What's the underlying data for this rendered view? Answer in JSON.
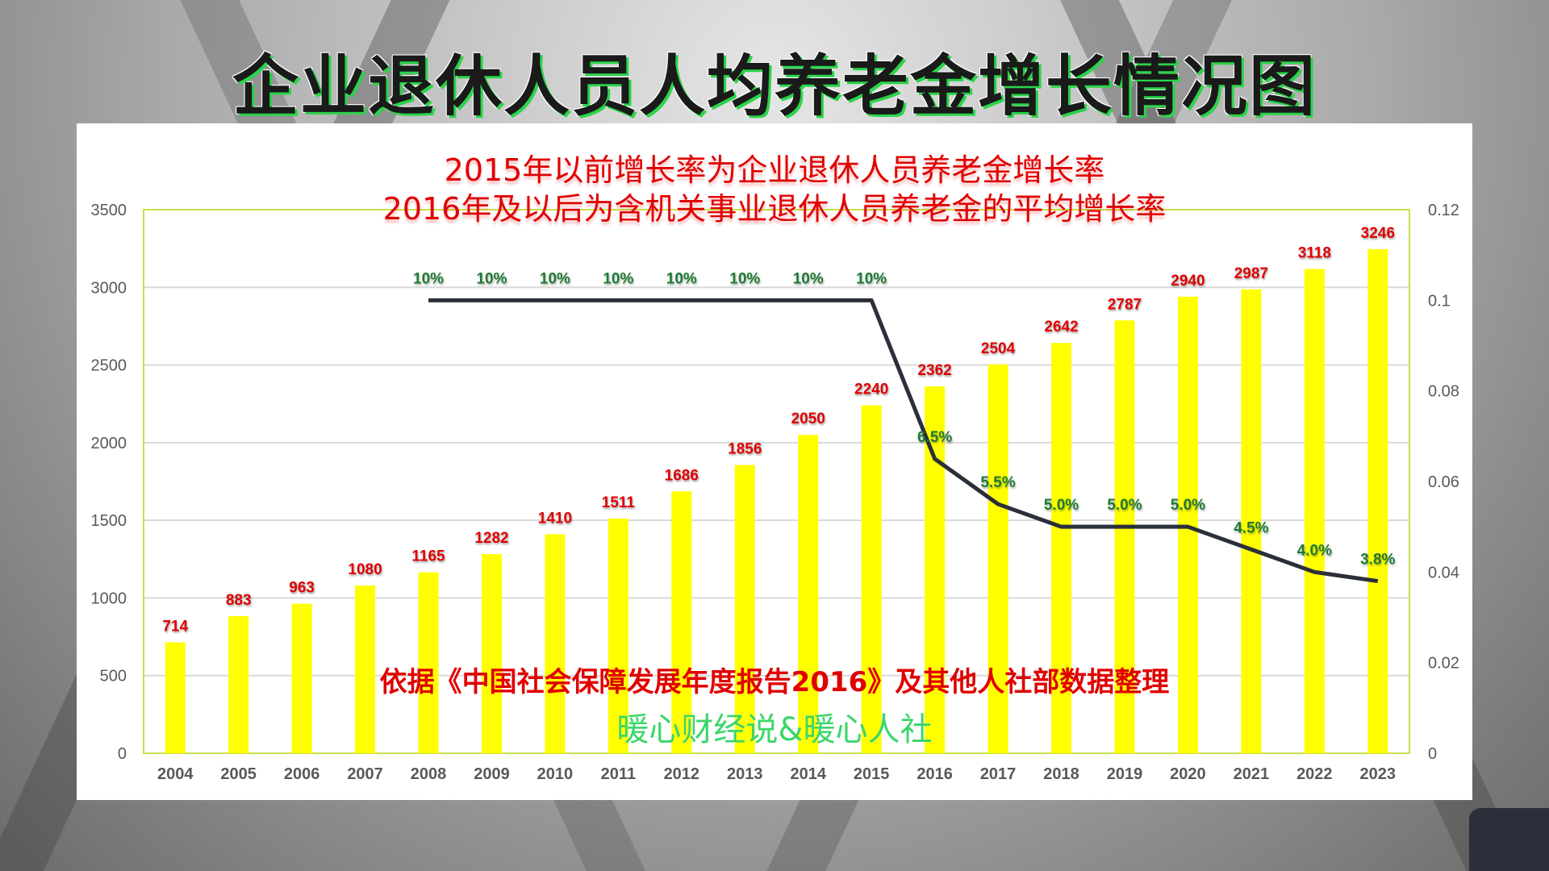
{
  "title": "企业退休人员人均养老金增长情况图",
  "chart_data": {
    "type": "bar+line",
    "subtitle_lines": [
      "2015年以前增长率为企业退休人员养老金增长率",
      "2016年及以后为含机关事业退休人员养老金的平均增长率"
    ],
    "categories": [
      "2004",
      "2005",
      "2006",
      "2007",
      "2008",
      "2009",
      "2010",
      "2011",
      "2012",
      "2013",
      "2014",
      "2015",
      "2016",
      "2017",
      "2018",
      "2019",
      "2020",
      "2021",
      "2022",
      "2023"
    ],
    "bar_values": [
      714,
      883,
      963,
      1080,
      1165,
      1282,
      1410,
      1511,
      1686,
      1856,
      2050,
      2240,
      2362,
      2504,
      2642,
      2787,
      2940,
      2987,
      3118,
      3246
    ],
    "bar_labels": [
      "714",
      "883",
      "963",
      "1080",
      "1165",
      "1282",
      "1410",
      "1511",
      "1686",
      "1856",
      "2050",
      "2240",
      "2362",
      "2504",
      "2642",
      "2787",
      "2940",
      "2987",
      "3118",
      "3246"
    ],
    "line_values": [
      null,
      null,
      null,
      null,
      0.1,
      0.1,
      0.1,
      0.1,
      0.1,
      0.1,
      0.1,
      0.1,
      0.065,
      0.055,
      0.05,
      0.05,
      0.05,
      0.045,
      0.04,
      0.038
    ],
    "line_labels": [
      null,
      null,
      null,
      null,
      "10%",
      "10%",
      "10%",
      "10%",
      "10%",
      "10%",
      "10%",
      "10%",
      "6.5%",
      "5.5%",
      "5.0%",
      "5.0%",
      "5.0%",
      "4.5%",
      "4.0%",
      "3.8%"
    ],
    "y_left": {
      "range": [
        0,
        3500
      ],
      "ticks": [
        "0",
        "500",
        "1000",
        "1500",
        "2000",
        "2500",
        "3000",
        "3500"
      ]
    },
    "y_right": {
      "range": [
        0,
        0.12
      ],
      "ticks": [
        "0",
        "0.02",
        "0.04",
        "0.06",
        "0.08",
        "0.1",
        "0.12"
      ]
    },
    "grid": true,
    "colors": {
      "bar": "#ffff00",
      "line": "#2b2f3a",
      "bar_label": "#e00000",
      "line_label": "#1e7a32"
    }
  },
  "source_note": "依据《中国社会保障发展年度报告2016》及其他人社部数据整理",
  "watermark": "暖心财经说&暖心人社"
}
